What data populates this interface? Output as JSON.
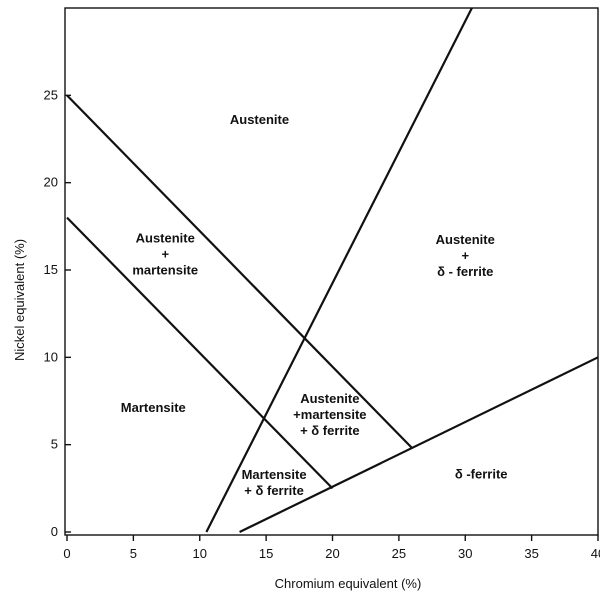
{
  "chart_data": {
    "type": "line",
    "title": "",
    "xlabel": "Chromium equivalent (%)",
    "ylabel": "Nickel equivalent (%)",
    "xlim": [
      0,
      40
    ],
    "ylim": [
      0,
      30
    ],
    "x_ticks": [
      0,
      5,
      10,
      15,
      20,
      25,
      30,
      35,
      40
    ],
    "y_ticks": [
      0,
      5,
      10,
      15,
      20,
      25
    ],
    "grid": false,
    "legend": "none",
    "boundaries": [
      {
        "x": [
          0,
          26
        ],
        "y": [
          25,
          4.8
        ]
      },
      {
        "x": [
          0,
          20
        ],
        "y": [
          18,
          2.5
        ]
      },
      {
        "x": [
          10.5,
          30.5
        ],
        "y": [
          0,
          30
        ]
      },
      {
        "x": [
          13,
          40
        ],
        "y": [
          0,
          10
        ]
      }
    ],
    "regions": [
      {
        "lines": [
          "Austenite"
        ],
        "x": 14.5,
        "y": 23.6
      },
      {
        "lines": [
          "Austenite",
          "+",
          "martensite"
        ],
        "x": 7.4,
        "y": 15.9
      },
      {
        "lines": [
          "Austenite",
          "+",
          "δ - ferrite"
        ],
        "x": 30,
        "y": 15.8
      },
      {
        "lines": [
          "Martensite"
        ],
        "x": 6.5,
        "y": 7.1
      },
      {
        "lines": [
          "Austenite",
          "+martensite",
          "+ δ  ferrite"
        ],
        "x": 19.8,
        "y": 6.7
      },
      {
        "lines": [
          "Martensite",
          "+ δ  ferrite"
        ],
        "x": 15.6,
        "y": 2.8
      },
      {
        "lines": [
          "δ -ferrite"
        ],
        "x": 31.2,
        "y": 3.3
      }
    ]
  }
}
